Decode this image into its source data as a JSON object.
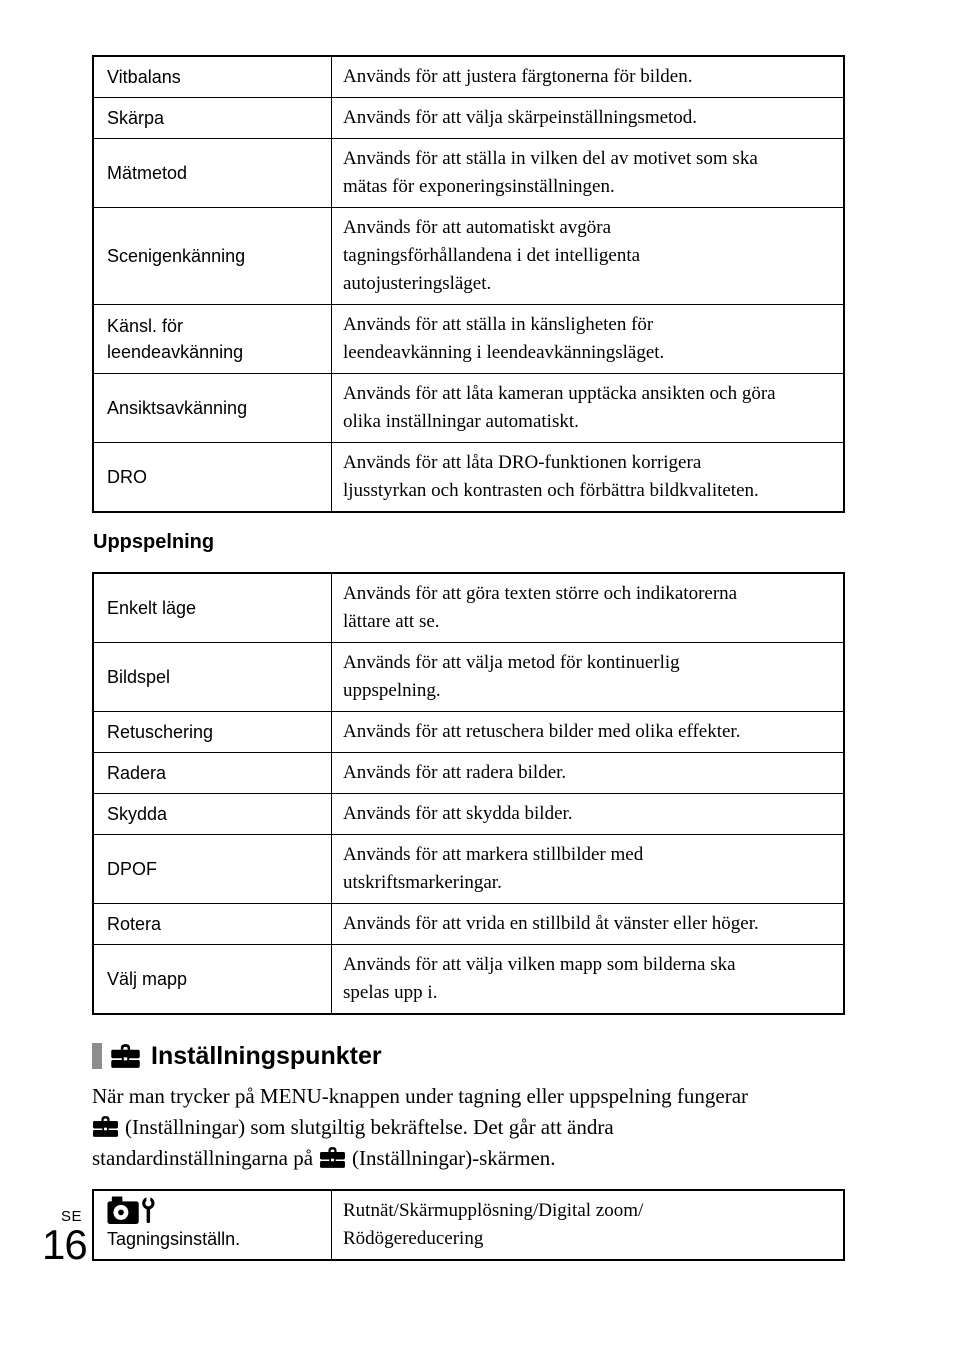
{
  "colors": {
    "background": "#ffffff",
    "text": "#000000",
    "table_border": "#000000",
    "section_bar_gray": "#8d8d8d"
  },
  "icons": {
    "settings": "toolbox-icon",
    "shooting_settings": "camera-wrench-icon"
  },
  "shooting_table": {
    "rows": [
      {
        "label_lines": [
          "Vitbalans"
        ],
        "desc_lines": [
          "Används för att justera färgtonerna för bilden."
        ]
      },
      {
        "label_lines": [
          "Skärpa"
        ],
        "desc_lines": [
          "Används för att välja skärpeinställningsmetod."
        ]
      },
      {
        "label_lines": [
          "Mätmetod"
        ],
        "desc_lines": [
          "Används för att ställa in vilken del av motivet som ska",
          "mätas för exponeringsinställningen."
        ]
      },
      {
        "label_lines": [
          "Scenigenkänning"
        ],
        "desc_lines": [
          "Används för att automatiskt avgöra",
          "tagningsförhållandena i det intelligenta",
          "autojusteringsläget."
        ]
      },
      {
        "label_lines": [
          "Känsl. för",
          "leendeavkänning"
        ],
        "desc_lines": [
          "Används för att ställa in känsligheten för",
          "leendeavkänning i leendeavkänningsläget."
        ]
      },
      {
        "label_lines": [
          "Ansiktsavkänning"
        ],
        "desc_lines": [
          "Används för att låta kameran upptäcka ansikten och göra",
          "olika inställningar automatiskt."
        ]
      },
      {
        "label_lines": [
          "DRO"
        ],
        "desc_lines": [
          "Används för att låta DRO-funktionen korrigera",
          "ljusstyrkan och kontrasten och förbättra bildkvaliteten."
        ]
      }
    ]
  },
  "playback_section": {
    "heading": "Uppspelning",
    "rows": [
      {
        "label_lines": [
          "Enkelt läge"
        ],
        "desc_lines": [
          "Används för att göra texten större och indikatorerna",
          "lättare att se."
        ]
      },
      {
        "label_lines": [
          "Bildspel"
        ],
        "desc_lines": [
          "Används för att välja metod för kontinuerlig",
          "uppspelning."
        ]
      },
      {
        "label_lines": [
          "Retuschering"
        ],
        "desc_lines": [
          "Används för att retuschera bilder med olika effekter."
        ]
      },
      {
        "label_lines": [
          "Radera"
        ],
        "desc_lines": [
          "Används för att radera bilder."
        ]
      },
      {
        "label_lines": [
          "Skydda"
        ],
        "desc_lines": [
          "Används för att skydda bilder."
        ]
      },
      {
        "label_lines": [
          "DPOF"
        ],
        "desc_lines": [
          "Används för att markera stillbilder med",
          "utskriftsmarkeringar."
        ]
      },
      {
        "label_lines": [
          "Rotera"
        ],
        "desc_lines": [
          "Används för att vrida en stillbild åt vänster eller höger."
        ]
      },
      {
        "label_lines": [
          "Välj mapp"
        ],
        "desc_lines": [
          "Används för att välja vilken mapp som bilderna ska",
          "spelas upp i."
        ]
      }
    ]
  },
  "settings_section": {
    "heading": "Inställningspunkter",
    "paragraph": {
      "line1": "När man trycker på MENU-knappen under tagning eller uppspelning fungerar",
      "line2": "(Inställningar) som slutgiltig bekräftelse. Det går att ändra",
      "line3_pre": "standardinställningarna på",
      "line3_post": "(Inställningar)-skärmen."
    },
    "table": {
      "label": "Tagningsinställn.",
      "desc_lines": [
        "Rutnät/Skärmupplösning/Digital zoom/",
        "Rödögereducering"
      ]
    }
  },
  "footer": {
    "language_code": "SE",
    "page_number": "16"
  }
}
